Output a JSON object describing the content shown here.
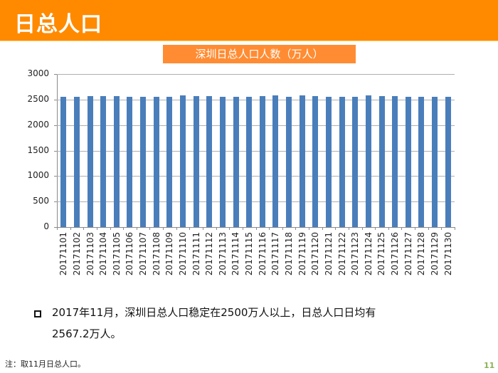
{
  "header": {
    "title": "日总人口",
    "bg_color": "#ff8a00"
  },
  "chart_title": "深圳日总人口人数（万人）",
  "chart_data": {
    "type": "bar",
    "title": "深圳日总人口人数（万人）",
    "xlabel": "",
    "ylabel": "",
    "ylim": [
      0,
      3000
    ],
    "yticks": [
      0,
      500,
      1000,
      1500,
      2000,
      2500,
      3000
    ],
    "grid": true,
    "legend": "none",
    "bar_color": "#4a7ebb",
    "categories": [
      "20171101",
      "20171102",
      "20171103",
      "20171104",
      "20171105",
      "20171106",
      "20171107",
      "20171108",
      "20171109",
      "20171110",
      "20171111",
      "20171112",
      "20171113",
      "20171114",
      "20171115",
      "20171116",
      "20171117",
      "20171118",
      "20171119",
      "20171120",
      "20171121",
      "20171122",
      "20171123",
      "20171124",
      "20171125",
      "20171126",
      "20171127",
      "20171128",
      "20171129",
      "20171130"
    ],
    "values": [
      2560,
      2550,
      2570,
      2570,
      2570,
      2560,
      2550,
      2550,
      2550,
      2580,
      2570,
      2570,
      2560,
      2550,
      2560,
      2570,
      2580,
      2550,
      2580,
      2570,
      2560,
      2560,
      2560,
      2580,
      2570,
      2570,
      2560,
      2550,
      2560,
      2560
    ]
  },
  "summary": {
    "line1": "2017年11月，深圳日总人口稳定在2500万人以上，日总人口日均有",
    "line2": "2567.2万人。"
  },
  "footer": {
    "note": "注：取11月日总人口。",
    "page_number": "11"
  }
}
